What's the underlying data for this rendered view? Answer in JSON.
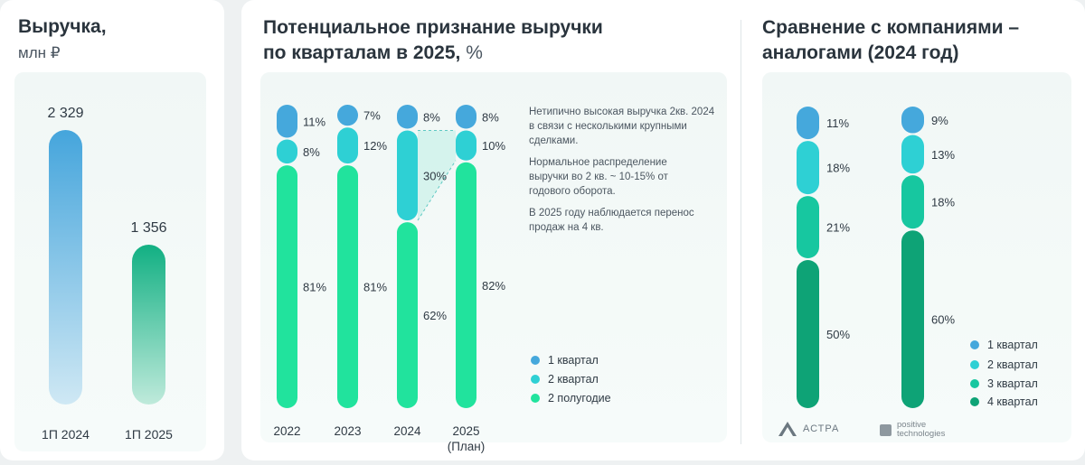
{
  "colors": {
    "q1": "#45a8dc",
    "q2": "#2ed0d4",
    "q3": "#17c7a0",
    "q4": "#0ea376",
    "h2": "#21e39d",
    "bar2024": "#4aa9de",
    "bar2025": "#18b486"
  },
  "revenue": {
    "title": "Выручка,",
    "subtitle": "млн ₽",
    "chart_data": {
      "type": "bar",
      "categories": [
        "1П 2024",
        "1П 2025"
      ],
      "values": [
        2329,
        1356
      ],
      "value_labels": [
        "2 329",
        "1 356"
      ]
    }
  },
  "quarterly": {
    "title_line1": "Потенциальное признание выручки",
    "title_line2": "по кварталам в 2025,",
    "title_unit": "%",
    "notes": [
      "Нетипично высокая выручка 2кв. 2024 в связи с несколькими крупными сделками.",
      "Нормальное распределение выручки во 2 кв. ~ 10-15% от годового оборота.",
      "В 2025 году наблюдается перенос продаж на 4 кв."
    ],
    "chart_data": {
      "type": "bar",
      "stacked": true,
      "categories": [
        "2022",
        "2023",
        "2024",
        "2025"
      ],
      "category_sublabels": [
        "",
        "",
        "",
        "(План)"
      ],
      "series": [
        {
          "name": "1 квартал",
          "values": [
            11,
            7,
            8,
            8
          ]
        },
        {
          "name": "2 квартал",
          "values": [
            8,
            12,
            30,
            10
          ]
        },
        {
          "name": "2 полугодие",
          "values": [
            81,
            81,
            62,
            82
          ]
        }
      ],
      "unit": "%",
      "legend": "bottom-right"
    }
  },
  "peers": {
    "title_line1": "Сравнение с компаниями –",
    "title_line2": "аналогами (2024 год)",
    "chart_data": {
      "type": "bar",
      "stacked": true,
      "categories": [
        "АСТРА",
        "positive technologies"
      ],
      "series": [
        {
          "name": "1 квартал",
          "values": [
            11,
            9
          ]
        },
        {
          "name": "2 квартал",
          "values": [
            18,
            13
          ]
        },
        {
          "name": "3 квартал",
          "values": [
            21,
            18
          ]
        },
        {
          "name": "4 квартал",
          "values": [
            50,
            60
          ]
        }
      ],
      "unit": "%",
      "legend": "bottom-right"
    },
    "logos": {
      "astra": "АСТРА",
      "pt_line1": "positive",
      "pt_line2": "technologies"
    }
  }
}
